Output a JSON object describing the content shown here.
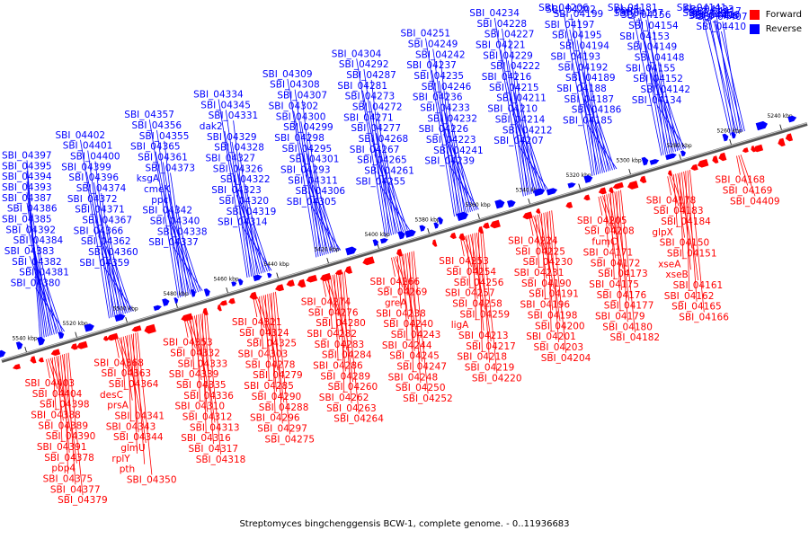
{
  "colors": {
    "forward": "#ff0000",
    "reverse": "#0000ff",
    "axis": "#555555"
  },
  "legend": {
    "forward_label": "Forward",
    "reverse_label": "Reverse"
  },
  "caption": "Streptomyces bingchenggensis BCW-1, complete genome. - 0..11936683",
  "ticks": [
    "5540 kbp",
    "5520 kbp",
    "5500 kbp",
    "5480 kbp",
    "5460 kbp",
    "5440 kbp",
    "5420 kbp",
    "5400 kbp",
    "5380 kbp",
    "5360 kbp",
    "5340 kbp",
    "5320 kbp",
    "5300 kbp",
    "5280 kbp",
    "5260 kbp",
    "5240 kbp"
  ],
  "forward_labels": [
    "SBI_04403",
    "SBI_04404",
    "SBI_04398",
    "SBI_04388",
    "SBI_04389",
    "SBI_04390",
    "SBI_04391",
    "SBI_04378",
    "pbp4",
    "SBI_04375",
    "SBI_04377",
    "SBI_04379",
    "SBI_04368",
    "SBI_04363",
    "SBI_04364",
    "desC",
    "prsA",
    "SBI_04341",
    "SBI_04343",
    "SBI_04344",
    "glmU",
    "rplY",
    "pth",
    "SBI_04350",
    "SBI_04353",
    "SBI_04332",
    "SBI_04333",
    "SBI_04339",
    "SBI_04335",
    "SBI_04336",
    "SBI_04310",
    "SBI_04312",
    "SBI_04313",
    "SBI_04316",
    "SBI_04317",
    "SBI_04318",
    "SBI_04321",
    "SBI_04324",
    "SBI_04325",
    "SBI_04303",
    "SBI_04278",
    "SBI_04279",
    "SBI_04285",
    "SBI_04290",
    "SBI_04288",
    "SBI_04296",
    "SBI_04297",
    "SBI_04275",
    "SBI_04274",
    "SBI_04276",
    "SBI_04280",
    "SBI_04282",
    "SBI_04283",
    "SBI_04284",
    "SBI_04286",
    "SBI_04289",
    "SBI_04260",
    "SBI_04262",
    "SBI_04263",
    "SBI_04264",
    "SBI_04266",
    "SBI_04269",
    "greA",
    "SBI_04238",
    "SBI_04240",
    "SBI_04243",
    "SBI_04244",
    "SBI_04245",
    "SBI_04247",
    "SBI_04248",
    "SBI_04250",
    "SBI_04252",
    "SBI_04253",
    "SBI_04254",
    "SBI_04256",
    "SBI_04257",
    "SBI_04258",
    "SBI_04259",
    "ligA",
    "SBI_04213",
    "SBI_04217",
    "SBI_04218",
    "SBI_04219",
    "SBI_04220",
    "SBI_04224",
    "SBI_04225",
    "SBI_04230",
    "SBI_04231",
    "SBI_04190",
    "SBI_04191",
    "SBI_04196",
    "SBI_04198",
    "SBI_04200",
    "SBI_04201",
    "SBI_04203",
    "SBI_04204",
    "SBI_04205",
    "SBI_04208",
    "fumC",
    "SBI_04171",
    "SBI_04172",
    "SBI_04173",
    "SBI_04175",
    "SBI_04176",
    "SBI_04177",
    "SBI_04179",
    "SBI_04180",
    "SBI_04182",
    "SBI_04178",
    "SBI_04183",
    "SBI_04184",
    "glpX",
    "SBI_04150",
    "SBI_04151",
    "xseA",
    "xseB",
    "SBI_04161",
    "SBI_04162",
    "SBI_04165",
    "SBI_04166",
    "SBI_04168",
    "SBI_04169",
    "SBI_04409"
  ],
  "reverse_labels": [
    "SBI_04397",
    "SBI_04395",
    "SBI_04394",
    "SBI_04393",
    "SBI_04387",
    "SBI_04386",
    "SBI_04385",
    "SBI_04392",
    "SBI_04384",
    "SBI_04383",
    "SBI_04382",
    "SBI_04381",
    "SBI_04380",
    "SBI_04402",
    "SBI_04401",
    "SBI_04400",
    "SBI_04399",
    "SBI_04396",
    "SBI_04374",
    "SBI_04372",
    "SBI_04371",
    "SBI_04367",
    "SBI_04366",
    "SBI_04362",
    "SBI_04360",
    "SBI_04359",
    "SBI_04357",
    "SBI_04356",
    "SBI_04355",
    "SBI_04365",
    "SBI_04361",
    "SBI_04373",
    "ksgA",
    "cmeK",
    "ppc",
    "SBI_04342",
    "SBI_04340",
    "SBI_04338",
    "SBI_04337",
    "SBI_04334",
    "SBI_04345",
    "SBI_04331",
    "dak2",
    "SBI_04329",
    "SBI_04328",
    "SBI_04327",
    "SBI_04326",
    "SBI_04322",
    "SBI_04323",
    "SBI_04320",
    "SBI_04319",
    "SBI_04314",
    "SBI_04309",
    "SBI_04308",
    "SBI_04307",
    "SBI_04302",
    "SBI_04300",
    "SBI_04299",
    "SBI_04298",
    "SBI_04295",
    "SBI_04301",
    "SBI_04293",
    "SBI_04311",
    "SBI_04306",
    "SBI_04305",
    "SBI_04304",
    "SBI_04292",
    "SBI_04287",
    "SBI_04281",
    "SBI_04273",
    "SBI_04272",
    "SBI_04271",
    "SBI_04277",
    "SBI_04268",
    "SBI_04267",
    "SBI_04265",
    "SBI_04261",
    "SBI_04255",
    "SBI_04251",
    "SBI_04249",
    "SBI_04242",
    "SBI_04237",
    "SBI_04235",
    "SBI_04246",
    "SBI_04236",
    "SBI_04233",
    "SBI_04232",
    "SBI_04226",
    "SBI_04223",
    "SBI_04241",
    "SBI_04239",
    "SBI_04234",
    "SBI_04228",
    "SBI_04227",
    "SBI_04221",
    "SBI_04229",
    "SBI_04222",
    "SBI_04216",
    "SBI_04215",
    "SBI_04211",
    "SBI_04210",
    "SBI_04214",
    "SBI_04212",
    "SBI_04207",
    "SBI_04206",
    "SBI_04202",
    "SBI_04199",
    "SBI_04197",
    "SBI_04195",
    "SBI_04194",
    "SBI_04193",
    "SBI_04192",
    "SBI_04189",
    "SBI_04188",
    "SBI_04187",
    "SBI_04186",
    "SBI_04185",
    "SBI_04181",
    "pbp3",
    "wblI",
    "SBI_04167",
    "SBI_04156",
    "SBI_04154",
    "SBI_04153",
    "SBI_04149",
    "SBI_04148",
    "SBI_04155",
    "SBI_04152",
    "SBI_04142",
    "SBI_04134",
    "SBI_04141",
    "SBI_04133",
    "SBI_04417",
    "SBI_04405",
    "SBI_04406",
    "SBI_04407",
    "SBI_04408",
    "SBI_04410"
  ]
}
